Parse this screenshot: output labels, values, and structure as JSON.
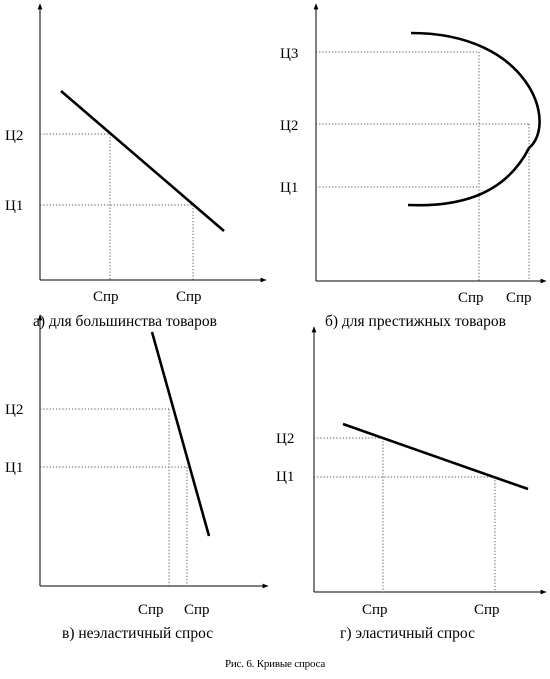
{
  "figure_caption": "Рис. 6. Кривые спроса",
  "panels": [
    {
      "caption": "а) для большинства товаров",
      "y_ticks": [
        "Ц2",
        "Ц1"
      ],
      "x_ticks": [
        "Спр",
        "Спр"
      ]
    },
    {
      "caption": "б) для престижных товаров",
      "y_ticks": [
        "Ц3",
        "Ц2",
        "Ц1"
      ],
      "x_ticks": [
        "Спр",
        "Спр"
      ]
    },
    {
      "caption": "в) неэластичный спрос",
      "y_ticks": [
        "Ц2",
        "Ц1"
      ],
      "x_ticks": [
        "Спр",
        "Спр"
      ]
    },
    {
      "caption": "г) эластичный спрос",
      "y_ticks": [
        "Ц2",
        "Ц1"
      ],
      "x_ticks": [
        "Спр",
        "Спр"
      ]
    }
  ]
}
